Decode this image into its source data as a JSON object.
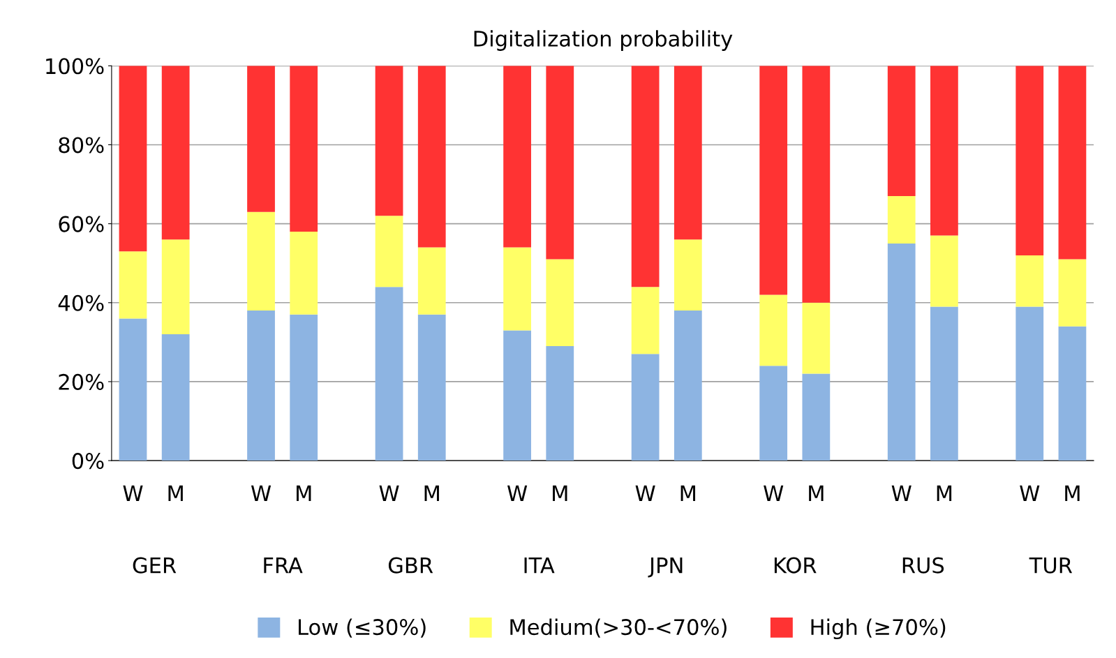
{
  "chart_data": {
    "type": "bar",
    "title": "Digitalization probability",
    "stacked": true,
    "categories": [
      "W",
      "M",
      null,
      "W",
      "M",
      null,
      "W",
      "M",
      null,
      "W",
      "M",
      null,
      "W",
      "M",
      null,
      "W",
      "M",
      null,
      "W",
      "M",
      null,
      "W",
      "M"
    ],
    "series": [
      {
        "name": "Low (≤30%)",
        "color": "#8db4e2",
        "values": [
          36,
          32,
          null,
          38,
          37,
          null,
          44,
          37,
          null,
          33,
          29,
          null,
          27,
          38,
          null,
          24,
          22,
          null,
          55,
          39,
          null,
          39,
          34
        ]
      },
      {
        "name": "Medium(>30-<70%)",
        "color": "#ffff66",
        "values": [
          17,
          24,
          null,
          25,
          21,
          null,
          18,
          17,
          null,
          21,
          22,
          null,
          17,
          18,
          null,
          18,
          18,
          null,
          12,
          18,
          null,
          13,
          17
        ]
      },
      {
        "name": "High (≥70%)",
        "color": "#ff3333",
        "values": [
          47,
          44,
          null,
          37,
          42,
          null,
          38,
          46,
          null,
          46,
          49,
          null,
          56,
          44,
          null,
          58,
          60,
          null,
          33,
          43,
          null,
          48,
          49
        ]
      }
    ],
    "ylim": [
      0,
      100
    ],
    "yticks": [
      {
        "value": 0,
        "label": "0%"
      },
      {
        "value": 20,
        "label": "20%"
      },
      {
        "value": 40,
        "label": "40%"
      },
      {
        "value": 60,
        "label": "60%"
      },
      {
        "value": 80,
        "label": "80%"
      },
      {
        "value": 100,
        "label": "100%"
      }
    ],
    "grid": "y",
    "legend": "bottom",
    "annotations": [
      "GER",
      "FRA",
      "GBR",
      "ITA",
      "JPN",
      "KOR",
      "RUS",
      "TUR"
    ]
  }
}
